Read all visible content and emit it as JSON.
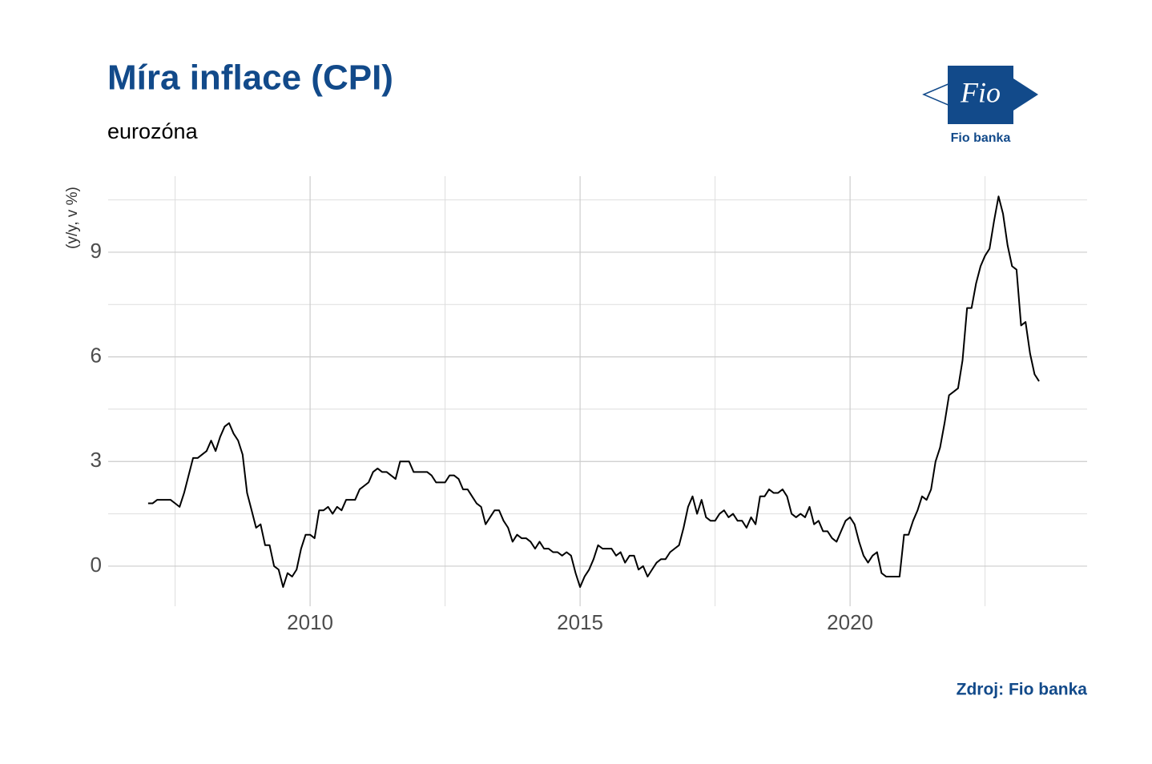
{
  "logo": {
    "mark": "Fio",
    "caption": "Fio banka"
  },
  "chart_data": {
    "type": "line",
    "title": "Míra inflace (CPI)",
    "subtitle": "eurozóna",
    "y_label": "(y/y, v %)",
    "source": "Zdroj: Fio banka",
    "xlim": [
      2006.26,
      2024.39
    ],
    "xticks": [
      2010,
      2015,
      2020
    ],
    "xminor": [
      2007.5,
      2012.5,
      2017.5,
      2022.5
    ],
    "ylim": [
      -1.15,
      11.18
    ],
    "yticks": [
      0,
      3,
      6,
      9
    ],
    "yminor": [
      1.5,
      4.5,
      7.5,
      10.5
    ],
    "grid": true,
    "series": [
      {
        "name": "CPI",
        "color": "#000000",
        "x": [
          2007.0,
          2007.083,
          2007.167,
          2007.25,
          2007.333,
          2007.417,
          2007.5,
          2007.583,
          2007.667,
          2007.75,
          2007.833,
          2007.917,
          2008.0,
          2008.083,
          2008.167,
          2008.25,
          2008.333,
          2008.417,
          2008.5,
          2008.583,
          2008.667,
          2008.75,
          2008.833,
          2008.917,
          2009.0,
          2009.083,
          2009.167,
          2009.25,
          2009.333,
          2009.417,
          2009.5,
          2009.583,
          2009.667,
          2009.75,
          2009.833,
          2009.917,
          2010.0,
          2010.083,
          2010.167,
          2010.25,
          2010.333,
          2010.417,
          2010.5,
          2010.583,
          2010.667,
          2010.75,
          2010.833,
          2010.917,
          2011.0,
          2011.083,
          2011.167,
          2011.25,
          2011.333,
          2011.417,
          2011.5,
          2011.583,
          2011.667,
          2011.75,
          2011.833,
          2011.917,
          2012.0,
          2012.083,
          2012.167,
          2012.25,
          2012.333,
          2012.417,
          2012.5,
          2012.583,
          2012.667,
          2012.75,
          2012.833,
          2012.917,
          2013.0,
          2013.083,
          2013.167,
          2013.25,
          2013.333,
          2013.417,
          2013.5,
          2013.583,
          2013.667,
          2013.75,
          2013.833,
          2013.917,
          2014.0,
          2014.083,
          2014.167,
          2014.25,
          2014.333,
          2014.417,
          2014.5,
          2014.583,
          2014.667,
          2014.75,
          2014.833,
          2014.917,
          2015.0,
          2015.083,
          2015.167,
          2015.25,
          2015.333,
          2015.417,
          2015.5,
          2015.583,
          2015.667,
          2015.75,
          2015.833,
          2015.917,
          2016.0,
          2016.083,
          2016.167,
          2016.25,
          2016.333,
          2016.417,
          2016.5,
          2016.583,
          2016.667,
          2016.75,
          2016.833,
          2016.917,
          2017.0,
          2017.083,
          2017.167,
          2017.25,
          2017.333,
          2017.417,
          2017.5,
          2017.583,
          2017.667,
          2017.75,
          2017.833,
          2017.917,
          2018.0,
          2018.083,
          2018.167,
          2018.25,
          2018.333,
          2018.417,
          2018.5,
          2018.583,
          2018.667,
          2018.75,
          2018.833,
          2018.917,
          2019.0,
          2019.083,
          2019.167,
          2019.25,
          2019.333,
          2019.417,
          2019.5,
          2019.583,
          2019.667,
          2019.75,
          2019.833,
          2019.917,
          2020.0,
          2020.083,
          2020.167,
          2020.25,
          2020.333,
          2020.417,
          2020.5,
          2020.583,
          2020.667,
          2020.75,
          2020.833,
          2020.917,
          2021.0,
          2021.083,
          2021.167,
          2021.25,
          2021.333,
          2021.417,
          2021.5,
          2021.583,
          2021.667,
          2021.75,
          2021.833,
          2021.917,
          2022.0,
          2022.083,
          2022.167,
          2022.25,
          2022.333,
          2022.417,
          2022.5,
          2022.583,
          2022.667,
          2022.75,
          2022.833,
          2022.917,
          2023.0,
          2023.083,
          2023.167,
          2023.25,
          2023.333,
          2023.417,
          2023.5
        ],
        "values": [
          1.8,
          1.8,
          1.9,
          1.9,
          1.9,
          1.9,
          1.8,
          1.7,
          2.1,
          2.6,
          3.1,
          3.1,
          3.2,
          3.3,
          3.6,
          3.3,
          3.7,
          4.0,
          4.1,
          3.8,
          3.6,
          3.2,
          2.1,
          1.6,
          1.1,
          1.2,
          0.6,
          0.6,
          0.0,
          -0.1,
          -0.6,
          -0.2,
          -0.3,
          -0.1,
          0.5,
          0.9,
          0.9,
          0.8,
          1.6,
          1.6,
          1.7,
          1.5,
          1.7,
          1.6,
          1.9,
          1.9,
          1.9,
          2.2,
          2.3,
          2.4,
          2.7,
          2.8,
          2.7,
          2.7,
          2.6,
          2.5,
          3.0,
          3.0,
          3.0,
          2.7,
          2.7,
          2.7,
          2.7,
          2.6,
          2.4,
          2.4,
          2.4,
          2.6,
          2.6,
          2.5,
          2.2,
          2.2,
          2.0,
          1.8,
          1.7,
          1.2,
          1.4,
          1.6,
          1.6,
          1.3,
          1.1,
          0.7,
          0.9,
          0.8,
          0.8,
          0.7,
          0.5,
          0.7,
          0.5,
          0.5,
          0.4,
          0.4,
          0.3,
          0.4,
          0.3,
          -0.2,
          -0.6,
          -0.3,
          -0.1,
          0.2,
          0.6,
          0.5,
          0.5,
          0.5,
          0.3,
          0.4,
          0.1,
          0.3,
          0.3,
          -0.1,
          0.0,
          -0.3,
          -0.1,
          0.1,
          0.2,
          0.2,
          0.4,
          0.5,
          0.6,
          1.1,
          1.7,
          2.0,
          1.5,
          1.9,
          1.4,
          1.3,
          1.3,
          1.5,
          1.6,
          1.4,
          1.5,
          1.3,
          1.3,
          1.1,
          1.4,
          1.2,
          2.0,
          2.0,
          2.2,
          2.1,
          2.1,
          2.2,
          2.0,
          1.5,
          1.4,
          1.5,
          1.4,
          1.7,
          1.2,
          1.3,
          1.0,
          1.0,
          0.8,
          0.7,
          1.0,
          1.3,
          1.4,
          1.2,
          0.7,
          0.3,
          0.1,
          0.3,
          0.4,
          -0.2,
          -0.3,
          -0.3,
          -0.3,
          -0.3,
          0.9,
          0.9,
          1.3,
          1.6,
          2.0,
          1.9,
          2.2,
          3.0,
          3.4,
          4.1,
          4.9,
          5.0,
          5.1,
          5.9,
          7.4,
          7.4,
          8.1,
          8.6,
          8.9,
          9.1,
          9.9,
          10.6,
          10.1,
          9.2,
          8.6,
          8.5,
          6.9,
          7.0,
          6.1,
          5.5,
          5.3
        ]
      }
    ]
  }
}
